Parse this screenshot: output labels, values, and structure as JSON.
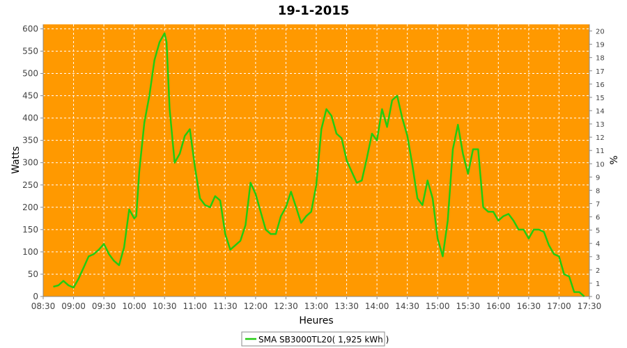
{
  "chart_data": {
    "type": "line",
    "title": "19-1-2015",
    "xlabel": "Heures",
    "ylabel": "Watts",
    "y2label": "%",
    "xlim": [
      "08:30",
      "17:30"
    ],
    "ylim": [
      0,
      610
    ],
    "y2lim": [
      0,
      20.5
    ],
    "x_ticks": [
      "08:30",
      "09:00",
      "09:30",
      "10:00",
      "10:30",
      "11:00",
      "11:30",
      "12:00",
      "12:30",
      "13:00",
      "13:30",
      "14:00",
      "14:30",
      "15:00",
      "15:30",
      "16:00",
      "16:30",
      "17:00",
      "17:30"
    ],
    "y_ticks": [
      0,
      50,
      100,
      150,
      200,
      250,
      300,
      350,
      400,
      450,
      500,
      550,
      600
    ],
    "y2_ticks": [
      0,
      1,
      2,
      3,
      4,
      5,
      6,
      7,
      8,
      9,
      10,
      11,
      12,
      13,
      14,
      15,
      16,
      17,
      18,
      19,
      20
    ],
    "grid": true,
    "plot_background": "#FF9900",
    "series": [
      {
        "name": "SMA SB3000TL20( 1,925 kWh )",
        "color": "#22CC11",
        "x": [
          "08:40",
          "08:45",
          "08:50",
          "08:55",
          "09:00",
          "09:05",
          "09:10",
          "09:15",
          "09:20",
          "09:25",
          "09:30",
          "09:35",
          "09:40",
          "09:45",
          "09:50",
          "09:55",
          "10:00",
          "10:02",
          "10:05",
          "10:10",
          "10:15",
          "10:20",
          "10:25",
          "10:30",
          "10:32",
          "10:35",
          "10:40",
          "10:45",
          "10:50",
          "10:55",
          "11:00",
          "11:05",
          "11:10",
          "11:15",
          "11:20",
          "11:25",
          "11:30",
          "11:35",
          "11:40",
          "11:45",
          "11:50",
          "11:55",
          "12:00",
          "12:05",
          "12:10",
          "12:15",
          "12:20",
          "12:25",
          "12:30",
          "12:35",
          "12:40",
          "12:45",
          "12:50",
          "12:55",
          "13:00",
          "13:05",
          "13:10",
          "13:15",
          "13:20",
          "13:25",
          "13:30",
          "13:35",
          "13:40",
          "13:45",
          "13:50",
          "13:55",
          "14:00",
          "14:05",
          "14:10",
          "14:15",
          "14:20",
          "14:25",
          "14:30",
          "14:35",
          "14:40",
          "14:45",
          "14:50",
          "14:55",
          "15:00",
          "15:05",
          "15:10",
          "15:15",
          "15:20",
          "15:25",
          "15:30",
          "15:35",
          "15:40",
          "15:45",
          "15:50",
          "15:55",
          "16:00",
          "16:05",
          "16:10",
          "16:15",
          "16:20",
          "16:25",
          "16:30",
          "16:35",
          "16:40",
          "16:45",
          "16:50",
          "16:55",
          "17:00",
          "17:05",
          "17:10",
          "17:15",
          "17:20",
          "17:25"
        ],
        "values": [
          22,
          25,
          35,
          25,
          20,
          40,
          65,
          90,
          95,
          105,
          118,
          95,
          80,
          70,
          110,
          195,
          175,
          180,
          280,
          390,
          450,
          530,
          570,
          590,
          570,
          420,
          300,
          320,
          360,
          375,
          290,
          220,
          205,
          200,
          225,
          215,
          140,
          105,
          115,
          125,
          160,
          255,
          230,
          190,
          150,
          140,
          140,
          180,
          200,
          235,
          200,
          165,
          180,
          190,
          250,
          375,
          420,
          405,
          365,
          355,
          305,
          280,
          255,
          260,
          310,
          365,
          350,
          420,
          380,
          440,
          450,
          400,
          360,
          295,
          220,
          205,
          260,
          220,
          130,
          90,
          170,
          330,
          385,
          320,
          275,
          330,
          330,
          200,
          190,
          190,
          170,
          180,
          185,
          170,
          150,
          150,
          130,
          150,
          150,
          145,
          115,
          95,
          90,
          50,
          45,
          10,
          10,
          0
        ]
      }
    ]
  }
}
